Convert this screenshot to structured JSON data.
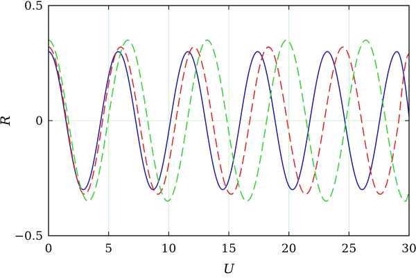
{
  "chart_data": {
    "type": "line",
    "title": "",
    "xlabel": "U",
    "ylabel": "R",
    "xlim": [
      0,
      30
    ],
    "ylim": [
      -0.5,
      0.5
    ],
    "x_ticks": [
      0,
      5,
      10,
      15,
      20,
      25,
      30
    ],
    "y_ticks": [
      -0.5,
      0,
      0.5
    ],
    "x_tick_labels": [
      "0",
      "5",
      "10",
      "15",
      "20",
      "25",
      "30"
    ],
    "y_tick_labels": [
      "−0.5",
      "0",
      "0.5"
    ],
    "grid": true,
    "grid_color": "#c8f0c8",
    "series": [
      {
        "color": "#1a1aa6",
        "dash": "solid",
        "x": [
          0,
          1.45,
          2.9,
          4.35,
          5.8,
          7.25,
          8.7,
          10.15,
          11.6,
          13.05,
          14.5,
          15.95,
          17.4,
          18.85,
          20.3,
          21.75,
          23.2,
          24.65,
          26.1,
          27.55,
          29.0,
          30.0
        ],
        "y": [
          0.3,
          0.0,
          -0.3,
          0.0,
          0.3,
          0.0,
          -0.3,
          0.0,
          0.3,
          0.0,
          -0.3,
          0.0,
          0.3,
          0.0,
          -0.3,
          0.0,
          0.3,
          0.0,
          -0.3,
          0.0,
          0.3,
          0.02
        ]
      },
      {
        "color": "#e02020",
        "dash": "dashed",
        "x": [
          0,
          1.5,
          3.0,
          4.5,
          6.0,
          7.55,
          9.1,
          10.6,
          12.1,
          13.65,
          15.2,
          16.75,
          18.3,
          19.85,
          21.4,
          22.95,
          24.5,
          26.05,
          27.6,
          29.15,
          30.0
        ],
        "y": [
          0.32,
          0.0,
          -0.32,
          0.0,
          0.32,
          0.0,
          -0.32,
          0.0,
          0.32,
          0.0,
          -0.32,
          0.0,
          0.32,
          0.0,
          -0.32,
          0.0,
          0.32,
          0.0,
          -0.32,
          0.0,
          0.29
        ]
      },
      {
        "color": "#30d030",
        "dash": "dashed",
        "x": [
          0,
          1.65,
          3.3,
          4.95,
          6.6,
          8.25,
          9.9,
          11.55,
          13.2,
          14.85,
          16.5,
          18.15,
          19.8,
          21.45,
          23.1,
          24.75,
          26.4,
          28.05,
          29.7,
          30.0
        ],
        "y": [
          0.35,
          0.0,
          -0.35,
          0.0,
          0.35,
          0.0,
          -0.35,
          0.0,
          0.35,
          0.0,
          -0.35,
          0.0,
          0.35,
          0.0,
          -0.35,
          0.0,
          0.35,
          0.0,
          -0.35,
          -0.3
        ]
      }
    ]
  }
}
